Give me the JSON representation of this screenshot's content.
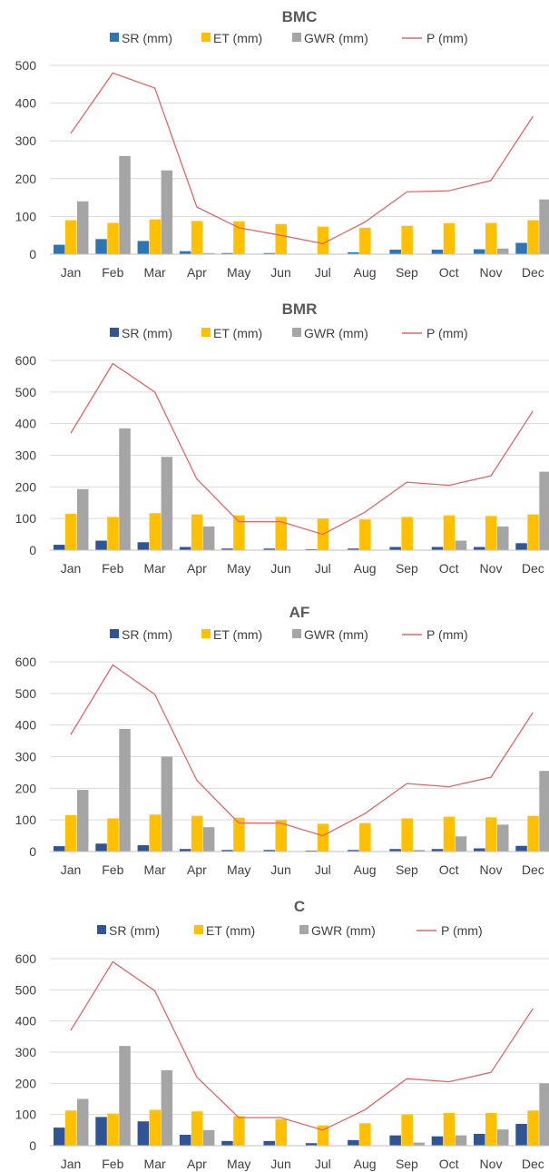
{
  "chart_data": [
    {
      "type": "bar",
      "title": "BMC",
      "categories": [
        "Jan",
        "Feb",
        "Mar",
        "Apr",
        "May",
        "Jun",
        "Jul",
        "Aug",
        "Sep",
        "Oct",
        "Nov",
        "Dec"
      ],
      "ylim": [
        0,
        500
      ],
      "yticks": [
        0,
        100,
        200,
        300,
        400,
        500
      ],
      "grid": true,
      "legend": "top",
      "series": [
        {
          "name": "SR (mm)",
          "kind": "bar",
          "color": "#2e75b6",
          "values": [
            25,
            40,
            35,
            8,
            3,
            3,
            1,
            5,
            12,
            12,
            13,
            30
          ]
        },
        {
          "name": "ET (mm)",
          "kind": "bar",
          "color": "#ffc000",
          "values": [
            90,
            83,
            92,
            88,
            87,
            80,
            73,
            70,
            75,
            82,
            83,
            90
          ]
        },
        {
          "name": "GWR (mm)",
          "kind": "bar",
          "color": "#a5a5a5",
          "values": [
            140,
            260,
            222,
            3,
            0,
            0,
            0,
            0,
            0,
            0,
            15,
            145
          ]
        },
        {
          "name": "P (mm)",
          "kind": "line",
          "color": "#e06666",
          "values": [
            320,
            480,
            440,
            125,
            70,
            50,
            28,
            85,
            165,
            168,
            195,
            365
          ]
        }
      ]
    },
    {
      "type": "bar",
      "title": "BMR",
      "categories": [
        "Jan",
        "Feb",
        "Mar",
        "Apr",
        "May",
        "Jun",
        "Jul",
        "Aug",
        "Sep",
        "Oct",
        "Nov",
        "Dec"
      ],
      "ylim": [
        0,
        600
      ],
      "yticks": [
        0,
        100,
        200,
        300,
        400,
        500,
        600
      ],
      "grid": true,
      "legend": "top",
      "series": [
        {
          "name": "SR (mm)",
          "kind": "bar",
          "color": "#2f5597",
          "values": [
            17,
            30,
            25,
            10,
            5,
            5,
            3,
            5,
            10,
            10,
            10,
            22
          ]
        },
        {
          "name": "ET (mm)",
          "kind": "bar",
          "color": "#ffc000",
          "values": [
            115,
            105,
            117,
            113,
            110,
            105,
            100,
            97,
            105,
            110,
            108,
            113
          ]
        },
        {
          "name": "GWR (mm)",
          "kind": "bar",
          "color": "#a5a5a5",
          "values": [
            193,
            385,
            295,
            75,
            0,
            0,
            0,
            0,
            0,
            30,
            75,
            248
          ]
        },
        {
          "name": "P (mm)",
          "kind": "line",
          "color": "#e06666",
          "values": [
            370,
            590,
            500,
            225,
            90,
            90,
            50,
            120,
            215,
            205,
            235,
            440
          ]
        }
      ]
    },
    {
      "type": "bar",
      "title": "AF",
      "categories": [
        "Jan",
        "Feb",
        "Mar",
        "Apr",
        "May",
        "Jun",
        "Jul",
        "Aug",
        "Sep",
        "Oct",
        "Nov",
        "Dec"
      ],
      "ylim": [
        0,
        600
      ],
      "yticks": [
        0,
        100,
        200,
        300,
        400,
        500,
        600
      ],
      "grid": true,
      "legend": "top",
      "series": [
        {
          "name": "SR (mm)",
          "kind": "bar",
          "color": "#2f5597",
          "values": [
            17,
            25,
            20,
            8,
            5,
            5,
            3,
            5,
            8,
            8,
            10,
            18
          ]
        },
        {
          "name": "ET (mm)",
          "kind": "bar",
          "color": "#ffc000",
          "values": [
            115,
            105,
            117,
            113,
            107,
            100,
            88,
            90,
            105,
            110,
            108,
            113
          ]
        },
        {
          "name": "GWR (mm)",
          "kind": "bar",
          "color": "#a5a5a5",
          "values": [
            195,
            388,
            300,
            77,
            0,
            0,
            0,
            0,
            5,
            48,
            85,
            255
          ]
        },
        {
          "name": "P (mm)",
          "kind": "line",
          "color": "#e06666",
          "values": [
            370,
            590,
            497,
            225,
            90,
            90,
            50,
            120,
            215,
            205,
            235,
            440
          ]
        }
      ]
    },
    {
      "type": "bar",
      "title": "C",
      "categories": [
        "Jan",
        "Feb",
        "Mar",
        "Apr",
        "May",
        "Jun",
        "Jul",
        "Aug",
        "Sep",
        "Oct",
        "Nov",
        "Dec"
      ],
      "ylim": [
        0,
        600
      ],
      "yticks": [
        0,
        100,
        200,
        300,
        400,
        500,
        600
      ],
      "grid": true,
      "legend": "top",
      "series": [
        {
          "name": "SR (mm)",
          "kind": "bar",
          "color": "#2f5597",
          "values": [
            58,
            92,
            78,
            35,
            15,
            15,
            8,
            18,
            33,
            30,
            38,
            70
          ]
        },
        {
          "name": "ET (mm)",
          "kind": "bar",
          "color": "#ffc000",
          "values": [
            113,
            103,
            115,
            110,
            95,
            85,
            65,
            72,
            100,
            105,
            105,
            113
          ]
        },
        {
          "name": "GWR (mm)",
          "kind": "bar",
          "color": "#a5a5a5",
          "values": [
            150,
            320,
            242,
            50,
            0,
            0,
            0,
            0,
            10,
            33,
            52,
            200
          ]
        },
        {
          "name": "P (mm)",
          "kind": "line",
          "color": "#e06666",
          "values": [
            370,
            590,
            497,
            220,
            90,
            90,
            50,
            115,
            215,
            205,
            235,
            440
          ]
        }
      ]
    }
  ]
}
